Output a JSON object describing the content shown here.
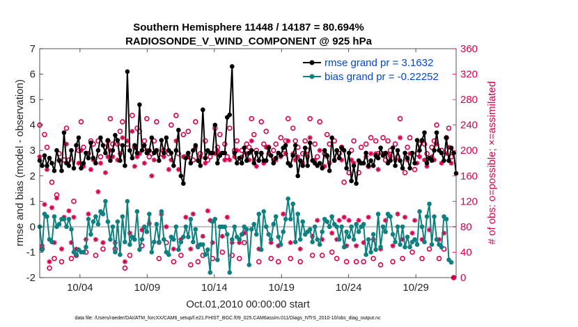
{
  "chart_data": {
    "type": "line",
    "title_line1": "Southern Hemisphere 11448 / 14187 = 80.694%",
    "title_line2": "RADIOSONDE_V_WIND_COMPONENT @ 925 hPa",
    "xlabel": "Oct.01,2010 00:00:00 start",
    "ylabel": "rmse and bias (model - observation)",
    "ylabel_right": "# of obs: o=possible; ×=assimilated",
    "xlim": [
      1,
      32
    ],
    "ylim": [
      -2,
      7
    ],
    "ylim_right": [
      0,
      360
    ],
    "x_ticks": [
      {
        "value": 4,
        "label": "10/04"
      },
      {
        "value": 9,
        "label": "10/09"
      },
      {
        "value": 14,
        "label": "10/14"
      },
      {
        "value": 19,
        "label": "10/19"
      },
      {
        "value": 24,
        "label": "10/24"
      },
      {
        "value": 29,
        "label": "10/29"
      }
    ],
    "y_ticks": [
      "-2",
      "-1",
      "0",
      "1",
      "2",
      "3",
      "4",
      "5",
      "6",
      "7"
    ],
    "y_ticks_right": [
      "0",
      "40",
      "80",
      "120",
      "160",
      "200",
      "240",
      "280",
      "320",
      "360"
    ],
    "colors": {
      "rmse": "#000000",
      "bias": "#0f8080",
      "obs": "#d8004e",
      "zero_line": "#bfbfbf",
      "legend_text": "#0047d6"
    },
    "series": [
      {
        "name": "rmse grand pr = 3.1632",
        "values": [
          2.6,
          2.4,
          2.8,
          2.4,
          2.7,
          2.5,
          2.2,
          3.0,
          2.6,
          2.2,
          3.7,
          2.5,
          2.4,
          3.0,
          2.3,
          3.2,
          3.5,
          2.3,
          2.5,
          2.9,
          2.7,
          3.3,
          2.7,
          2.5,
          3.0,
          3.5,
          3.2,
          2.9,
          3.4,
          2.6,
          3.0,
          3.6,
          3.4,
          2.6,
          3.2,
          2.4,
          6.1,
          3.0,
          2.7,
          3.2,
          2.9,
          4.8,
          3.0,
          3.2,
          2.9,
          3.0,
          3.5,
          2.9,
          3.0,
          2.6,
          3.4,
          2.9,
          3.5,
          3.0,
          2.9,
          2.4,
          3.0,
          3.8,
          2.0,
          1.7,
          2.7,
          2.9,
          2.5,
          3.0,
          3.2,
          2.6,
          2.4,
          4.6,
          2.7,
          3.0,
          2.9,
          2.9,
          4.0,
          2.5,
          2.8,
          2.9,
          2.9,
          4.3,
          4.4,
          6.3,
          2.9,
          2.5,
          2.7,
          2.5,
          3.1,
          2.6,
          2.9,
          3.0,
          2.5,
          2.9,
          2.6,
          2.9,
          2.6,
          2.6,
          3.1,
          2.8,
          2.5,
          2.7,
          2.9,
          2.8,
          3.1,
          3.2,
          2.5,
          2.4,
          2.8,
          3.2,
          2.0,
          2.6,
          2.4,
          3.1,
          2.4,
          3.3,
          2.6,
          2.5,
          2.4,
          2.5,
          2.3,
          3.0,
          2.8,
          2.2,
          3.5,
          2.6,
          3.0,
          2.7,
          3.1,
          3.0,
          2.3,
          2.9,
          1.8,
          2.4,
          1.7,
          2.6,
          2.5,
          2.5,
          2.9,
          2.4,
          2.6,
          2.4,
          2.8,
          2.7,
          3.1,
          2.8,
          2.9,
          2.5,
          2.6,
          3.1,
          2.4,
          3.0,
          2.6,
          2.3,
          2.9,
          2.7,
          2.3,
          2.9,
          2.5,
          3.4,
          3.0,
          3.4,
          3.7,
          2.5,
          2.7,
          2.6,
          3.0,
          3.7,
          3.0,
          2.9,
          2.6,
          3.5,
          2.6,
          3.1,
          2.9,
          2.1
        ],
        "color": "#000000"
      },
      {
        "name": "bias grand pr = -0.22252",
        "values": [
          0.0,
          -0.9,
          0.5,
          0.4,
          -0.5,
          -0.6,
          0.4,
          0.0,
          0.1,
          0.3,
          0.3,
          0.0,
          0.3,
          -0.1,
          -1.0,
          -1.1,
          -0.9,
          -1.0,
          -1.0,
          -0.8,
          0.3,
          -0.3,
          0.2,
          0.4,
          0.1,
          0.6,
          0.5,
          1.0,
          0.2,
          -0.5,
          0.0,
          -1.0,
          0.2,
          -1.1,
          0.4,
          -0.6,
          1.0,
          -0.7,
          -0.4,
          -0.5,
          0.6,
          -0.9,
          -0.5,
          0.0,
          -0.2,
          0.5,
          -1.0,
          -0.6,
          0.1,
          -0.6,
          0.6,
          -0.5,
          -1.0,
          -1.1,
          -0.4,
          -0.5,
          0.0,
          -0.9,
          -0.6,
          -0.4,
          0.0,
          -0.4,
          0.3,
          -0.6,
          -0.1,
          -0.8,
          -0.7,
          -0.7,
          -1.1,
          -0.9,
          -1.8,
          0.2,
          0.3,
          -1.3,
          0.0,
          0.0,
          0.0,
          -0.3,
          -1.8,
          -0.5,
          0.0,
          -0.4,
          -0.5,
          -0.3,
          0.0,
          -0.1,
          -1.5,
          -0.1,
          0.1,
          -0.3,
          0.5,
          -0.9,
          0.6,
          0.0,
          -0.3,
          -0.5,
          0.1,
          0.4,
          -0.4,
          -0.7,
          -0.2,
          0.3,
          1.1,
          0.3,
          0.9,
          -0.6,
          0.5,
          -0.5,
          0.2,
          -0.3,
          -0.2,
          -0.1,
          -0.6,
          0.0,
          -0.5,
          -0.7,
          -0.2,
          0.3,
          0.2,
          0.0,
          0.4,
          0.1,
          0.0,
          -0.5,
          0.0,
          -0.8,
          -0.2,
          -0.4,
          0.0,
          -0.5,
          0.1,
          -0.2,
          0.0,
          0.1,
          -1.1,
          -0.5,
          -1.0,
          -0.3,
          -0.9,
          0.5,
          -0.8,
          0.0,
          -0.2,
          0.5,
          0.4,
          -0.3,
          -0.6,
          0.0,
          -0.7,
          0.0,
          -0.8,
          -0.4,
          -0.8,
          -0.6,
          -0.5,
          -0.7,
          0.6,
          0.0,
          -0.6,
          0.4,
          0.9,
          -0.7,
          0.4,
          -0.5,
          -0.7,
          -0.8,
          0.4,
          0.3,
          -1.3,
          -1.4
        ],
        "color": "#0f8080"
      }
    ],
    "obs_possible": [
      240,
      45,
      225,
      205,
      15,
      150,
      30,
      130,
      195,
      25,
      185,
      235,
      185,
      30,
      120,
      35,
      200,
      245,
      205,
      40,
      195,
      215,
      210,
      35,
      215,
      190,
      45,
      205,
      215,
      250,
      210,
      45,
      210,
      230,
      245,
      15,
      210,
      35,
      255,
      205,
      235,
      230,
      50,
      215,
      250,
      190,
      195,
      215,
      245,
      30,
      195,
      200,
      55,
      195,
      240,
      25,
      255,
      195,
      35,
      225,
      190,
      230,
      20,
      185,
      245,
      25,
      195,
      35,
      215,
      185,
      190,
      30,
      235,
      205,
      225,
      40,
      210,
      190,
      235,
      35,
      200,
      215,
      30,
      200,
      55,
      210,
      205,
      250,
      225,
      200,
      25,
      245,
      210,
      230,
      205,
      30,
      200,
      210,
      25,
      220,
      195,
      215,
      250,
      30,
      235,
      215,
      205,
      25,
      195,
      215,
      200,
      250,
      35,
      210,
      190,
      245,
      35,
      195,
      225,
      210,
      40,
      215,
      30,
      195,
      205,
      150,
      25,
      165,
      200,
      215,
      25,
      165,
      205,
      25,
      210,
      175,
      220,
      30,
      215,
      195,
      20,
      220,
      185,
      215,
      200,
      25,
      210,
      190,
      250,
      30,
      165,
      205,
      220,
      40,
      170,
      195,
      210,
      30,
      210,
      195,
      45,
      205,
      215,
      240,
      30,
      200,
      45,
      220,
      235,
      190,
      0
    ],
    "obs_assimilated": [
      190,
      50,
      115,
      170,
      25,
      110,
      55,
      125,
      185,
      45,
      95,
      210,
      105,
      55,
      95,
      45,
      180,
      200,
      175,
      60,
      100,
      170,
      185,
      60,
      135,
      180,
      55,
      165,
      190,
      200,
      190,
      55,
      185,
      195,
      220,
      25,
      215,
      70,
      230,
      175,
      190,
      195,
      75,
      180,
      200,
      85,
      160,
      185,
      200,
      55,
      100,
      190,
      80,
      170,
      185,
      45,
      215,
      170,
      60,
      190,
      95,
      190,
      45,
      100,
      205,
      50,
      190,
      65,
      180,
      105,
      90,
      55,
      195,
      200,
      195,
      65,
      185,
      95,
      185,
      55,
      190,
      200,
      55,
      190,
      70,
      195,
      185,
      215,
      185,
      175,
      45,
      195,
      180,
      205,
      195,
      55,
      185,
      185,
      50,
      190,
      100,
      195,
      215,
      55,
      195,
      185,
      190,
      45,
      180,
      195,
      190,
      220,
      65,
      185,
      90,
      200,
      60,
      175,
      190,
      180,
      70,
      185,
      60,
      90,
      185,
      95,
      50,
      90,
      185,
      180,
      50,
      90,
      180,
      55,
      190,
      95,
      195,
      60,
      195,
      170,
      45,
      195,
      90,
      195,
      190,
      50,
      185,
      100,
      220,
      60,
      95,
      185,
      195,
      70,
      90,
      180,
      190,
      60,
      185,
      175,
      75,
      190,
      185,
      210,
      60,
      180,
      70,
      195,
      205,
      180,
      0
    ],
    "legend": [
      "rmse grand pr = 3.1632",
      "bias grand pr = -0.22252"
    ],
    "legend_position": "top-right",
    "footnote": "data file: /Users/raeder/DAI/ATM_forcXX/CAM6_setup/f.e21.FHIST_BGC.f09_025.CAM6assim.011/Diags_NTrS_2010-10/obs_diag_output.nc"
  }
}
